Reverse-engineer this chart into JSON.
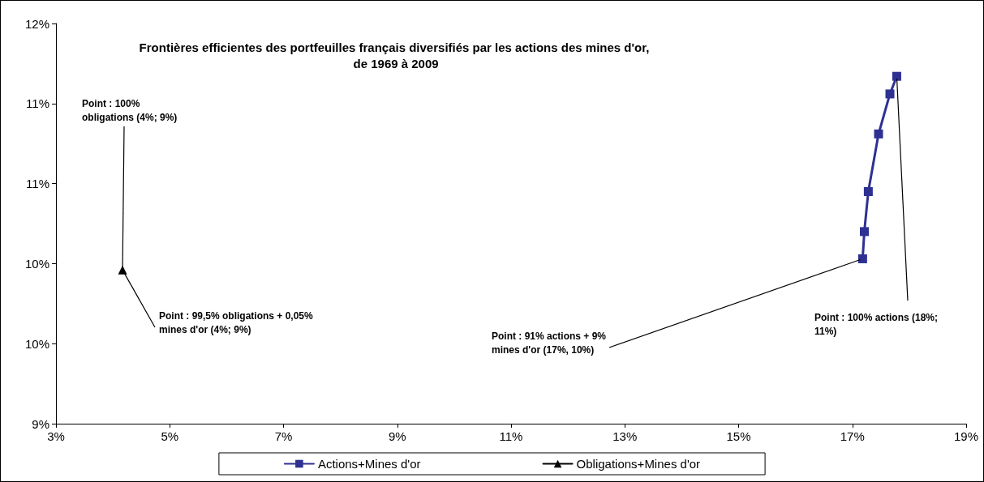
{
  "chart_data": {
    "type": "line",
    "title": "Frontières efficientes des portfeuilles français diversifiés par les actions des mines d'or, de 1969 à 2009",
    "series": [
      {
        "name": "Actions+Mines d'or",
        "color": "#2e3192",
        "marker": "square",
        "x": [
          17.18,
          17.21,
          17.28,
          17.46,
          17.66,
          17.78
        ],
        "values": [
          10.03,
          10.2,
          10.45,
          10.81,
          11.06,
          11.17
        ]
      },
      {
        "name": "Obligations+Mines d'or",
        "color": "#000000",
        "marker": "triangle",
        "x": [
          4.17
        ],
        "values": [
          9.96
        ]
      }
    ],
    "xlim": [
      3,
      19
    ],
    "xticks": [
      {
        "value": 3,
        "label": "3%"
      },
      {
        "value": 5,
        "label": "5%"
      },
      {
        "value": 7,
        "label": "7%"
      },
      {
        "value": 9,
        "label": "9%"
      },
      {
        "value": 11,
        "label": "11%"
      },
      {
        "value": 13,
        "label": "13%"
      },
      {
        "value": 15,
        "label": "15%"
      },
      {
        "value": 17,
        "label": "17%"
      },
      {
        "value": 19,
        "label": "19%"
      }
    ],
    "ylim": [
      9,
      11.5
    ],
    "yticks": [
      {
        "value": 9,
        "label": "9%"
      },
      {
        "value": 9.5,
        "label": "10%"
      },
      {
        "value": 10,
        "label": "10%"
      },
      {
        "value": 10.5,
        "label": "11%"
      },
      {
        "value": 11,
        "label": "11%"
      },
      {
        "value": 11.5,
        "label": "12%"
      }
    ],
    "grid": false,
    "legend": "bottom",
    "annotations": [
      {
        "text": "Point : 100% obligations (4%; 9%)",
        "x": 4.17,
        "y": 9.96
      },
      {
        "text": "Point : 99,5% obligations + 0,05% mines d'or (4%; 9%)",
        "x": 4.17,
        "y": 9.96
      },
      {
        "text": "Point : 91% actions + 9% mines d'or (17%, 10%)",
        "x": 17.18,
        "y": 10.03
      },
      {
        "text": "Point : 100% actions (18%; 11%)",
        "x": 17.78,
        "y": 11.17
      }
    ]
  }
}
